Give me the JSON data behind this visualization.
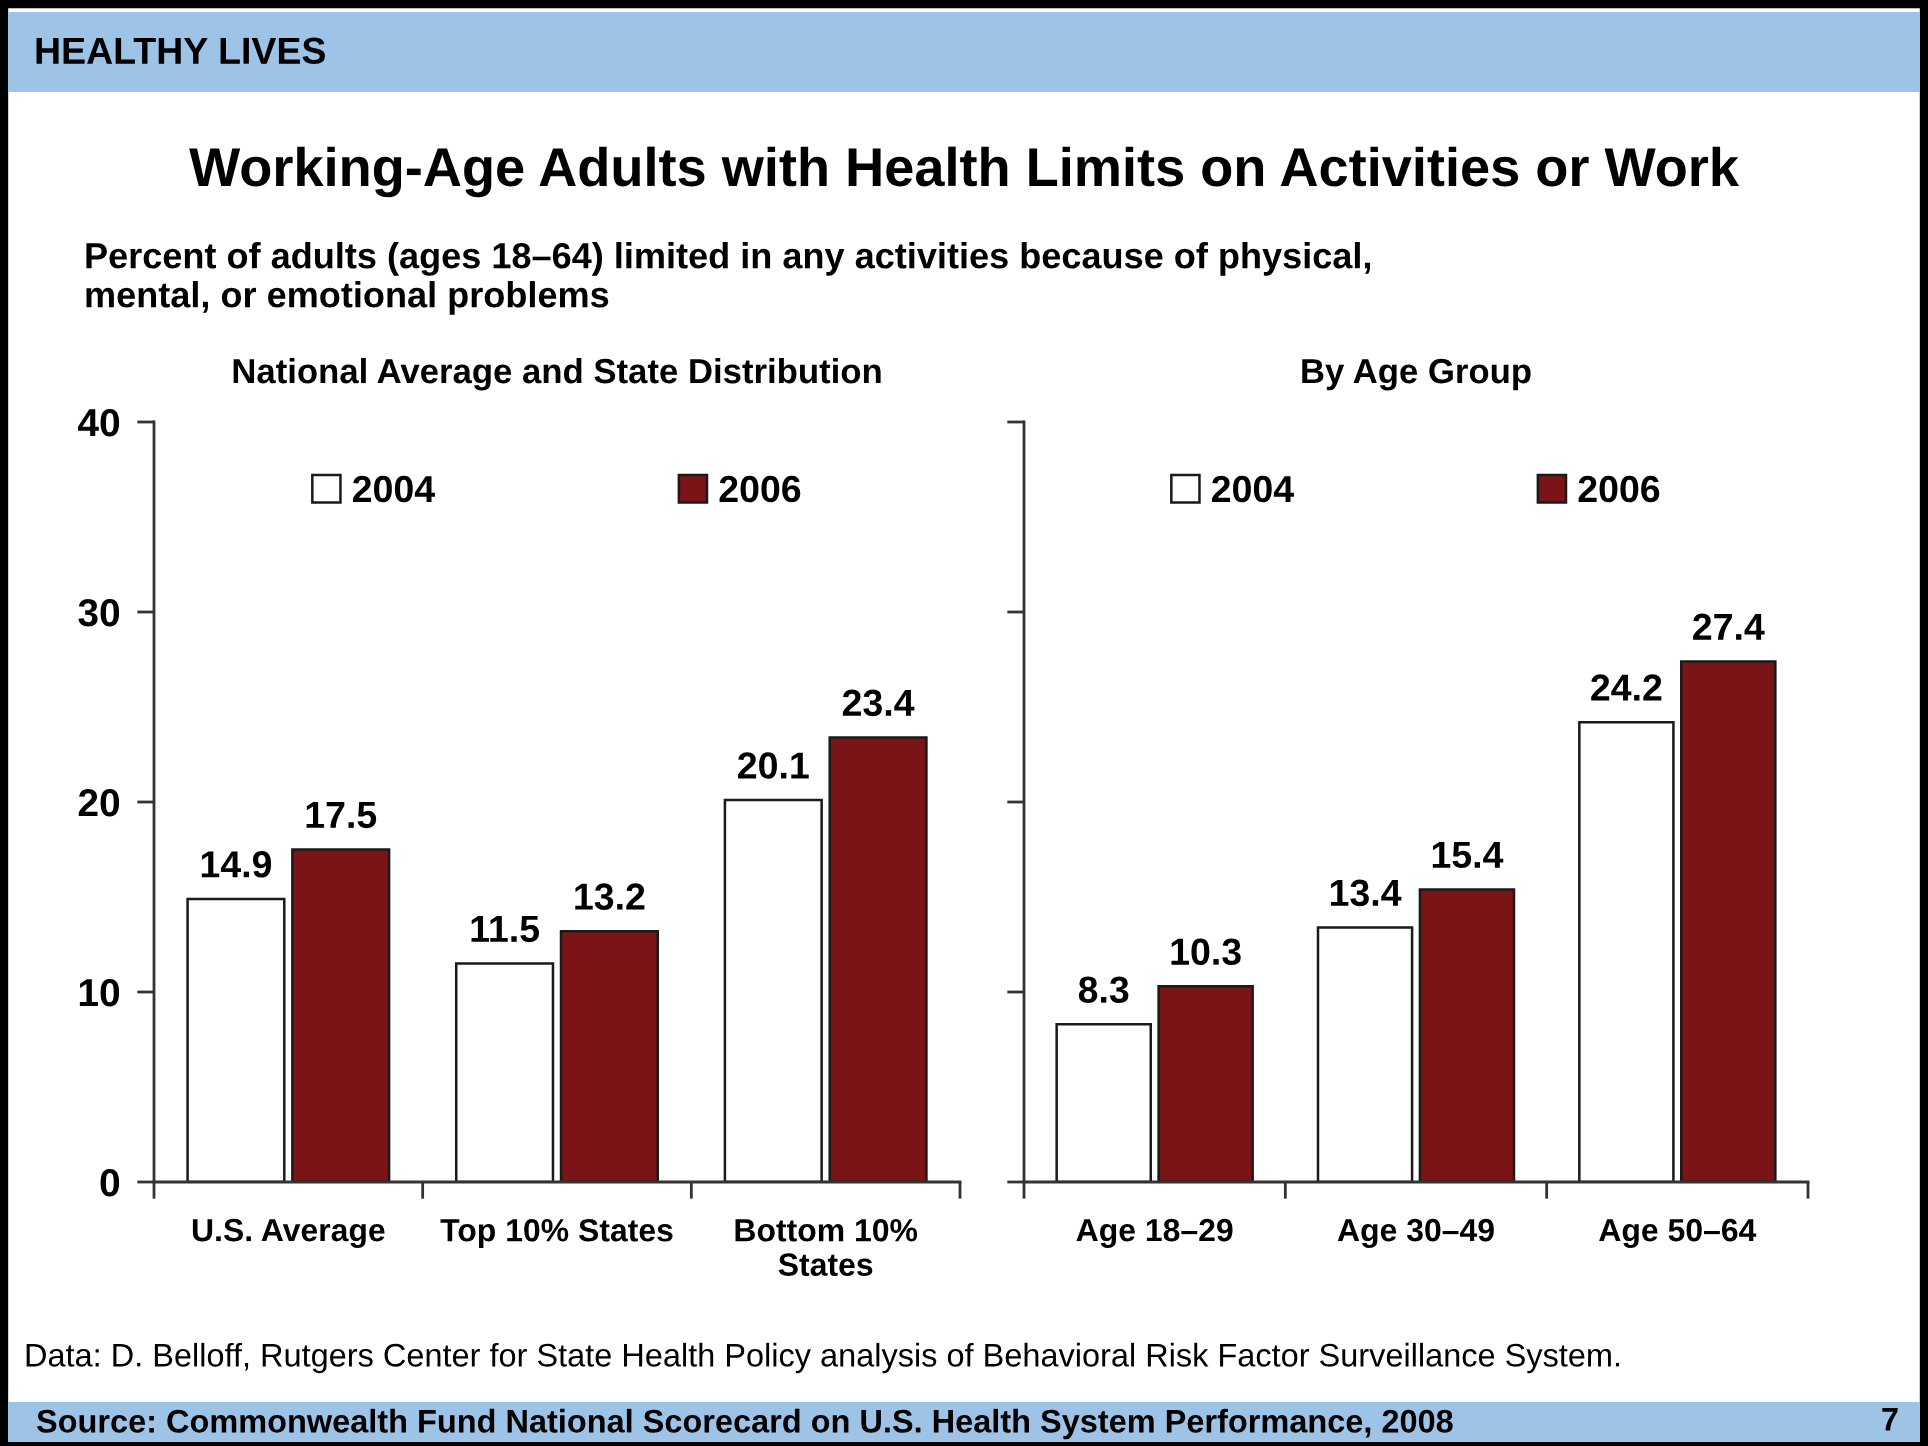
{
  "chart_data": [
    {
      "type": "other",
      "title": "Working-Age Adults with Health Limits on Activities or Work",
      "subtitle": "Percent of adults (ages 18–64) limited in any activities because of physical,\nmental, or emotional problems",
      "annotations": [
        "HEALTHY LIVES",
        "Data: D. Belloff, Rutgers Center for State Health Policy analysis of Behavioral Risk Factor Surveillance System.",
        "Source: Commonwealth Fund National Scorecard on U.S. Health System Performance, 2008",
        "7"
      ]
    },
    {
      "type": "bar",
      "title": "National Average and State Distribution",
      "categories": [
        "U.S. Average",
        "Top 10% States",
        "Bottom 10%\nStates"
      ],
      "series": [
        {
          "name": "2004",
          "color": "#ffffff",
          "values": [
            14.9,
            11.5,
            20.1
          ]
        },
        {
          "name": "2006",
          "color": "#7b1416",
          "values": [
            17.5,
            13.2,
            23.4
          ]
        }
      ],
      "ylim": [
        0,
        40
      ],
      "yticks": [
        0,
        10,
        20,
        30,
        40
      ],
      "data_labels": true,
      "legend": "top"
    },
    {
      "type": "bar",
      "title": "By Age Group",
      "categories": [
        "Age 18–29",
        "Age 30–49",
        "Age 50–64"
      ],
      "series": [
        {
          "name": "2004",
          "color": "#ffffff",
          "values": [
            8.3,
            13.4,
            24.2
          ]
        },
        {
          "name": "2006",
          "color": "#7b1416",
          "values": [
            10.3,
            15.4,
            27.4
          ]
        }
      ],
      "ylim": [
        0,
        40
      ],
      "yticks": [
        0,
        10,
        20,
        30,
        40
      ],
      "tick_labels": "x",
      "data_labels": true,
      "legend": "top"
    }
  ]
}
